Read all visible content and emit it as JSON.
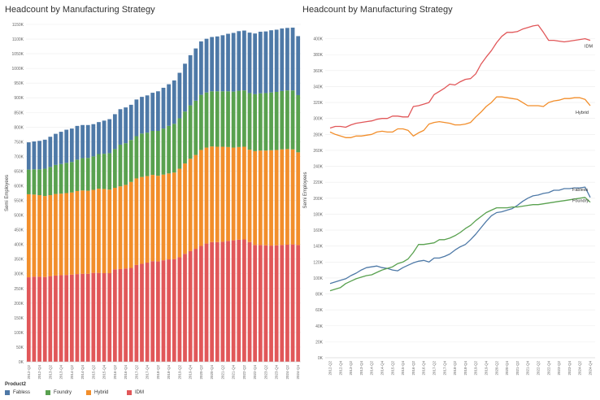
{
  "colors": {
    "Fabless": "#4e79a7",
    "Foundry": "#59a14f",
    "Hybrid": "#f28e2b",
    "IDM": "#e15759"
  },
  "legend": {
    "title": "Product2",
    "items": [
      {
        "label": "Fabless",
        "color": "#4e79a7"
      },
      {
        "label": "Foundry",
        "color": "#59a14f"
      },
      {
        "label": "Hybrid",
        "color": "#f28e2b"
      },
      {
        "label": "IDM",
        "color": "#e15759"
      }
    ]
  },
  "chart_data": [
    {
      "type": "bar",
      "stacked": true,
      "title": "Headcount by Manufacturing Strategy",
      "xlabel": "",
      "ylabel": "Semi Employees",
      "ylim": [
        0,
        1150000
      ],
      "y_ticks": [
        0,
        50000,
        100000,
        150000,
        200000,
        250000,
        300000,
        350000,
        400000,
        450000,
        500000,
        550000,
        600000,
        650000,
        700000,
        750000,
        800000,
        850000,
        900000,
        950000,
        1000000,
        1050000,
        1100000,
        1150000
      ],
      "y_tick_labels": [
        "0K",
        "50K",
        "100K",
        "150K",
        "200K",
        "250K",
        "300K",
        "350K",
        "400K",
        "450K",
        "500K",
        "550K",
        "600K",
        "650K",
        "700K",
        "750K",
        "800K",
        "850K",
        "900K",
        "950K",
        "1000K",
        "1050K",
        "1100K",
        "1150K"
      ],
      "grid": true,
      "categories": [
        "2012-Q2",
        "2012-Q3",
        "2012-Q4",
        "2013-Q1",
        "2013-Q2",
        "2013-Q3",
        "2013-Q4",
        "2014-Q1",
        "2014-Q2",
        "2014-Q3",
        "2014-Q4",
        "2015-Q1",
        "2015-Q2",
        "2015-Q3",
        "2015-Q4",
        "2016-Q1",
        "2016-Q2",
        "2016-Q3",
        "2016-Q4",
        "2017-Q1",
        "2017-Q2",
        "2017-Q3",
        "2017-Q4",
        "2018-Q1",
        "2018-Q2",
        "2018-Q3",
        "2018-Q4",
        "2019-Q1",
        "2019-Q2",
        "2019-Q3",
        "2019-Q4",
        "2020-Q1",
        "2020-Q2",
        "2020-Q3",
        "2020-Q4",
        "2021-Q1",
        "2021-Q2",
        "2021-Q3",
        "2021-Q4",
        "2022-Q1",
        "2022-Q2",
        "2022-Q3",
        "2022-Q4",
        "2023-Q1",
        "2023-Q2",
        "2023-Q3",
        "2023-Q4",
        "2024-Q1",
        "2024-Q2",
        "2024-Q3",
        "2024-Q4"
      ],
      "x_tick_labels": [
        "2012-Q2",
        "2012-Q4",
        "2013-Q2",
        "2013-Q4",
        "2014-Q2",
        "2014-Q4",
        "2015-Q2",
        "2015-Q4",
        "2016-Q2",
        "2016-Q4",
        "2017-Q2",
        "2017-Q4",
        "2018-Q2",
        "2018-Q4",
        "2019-Q2",
        "2019-Q4",
        "2020-Q2",
        "2020-Q4",
        "2021-Q2",
        "2021-Q4",
        "2022-Q2",
        "2022-Q4",
        "2023-Q2",
        "2023-Q4",
        "2024-Q2",
        "2024-Q4"
      ],
      "series": [
        {
          "name": "IDM",
          "values": [
            288000,
            290000,
            290000,
            289000,
            292000,
            294000,
            295000,
            296000,
            297000,
            299000,
            300000,
            300000,
            303000,
            303000,
            302000,
            302000,
            315000,
            316000,
            318000,
            320000,
            330000,
            334000,
            338000,
            343000,
            342000,
            346000,
            349000,
            350000,
            356000,
            368000,
            377000,
            385000,
            395000,
            403000,
            408000,
            408000,
            409000,
            412000,
            414000,
            416000,
            417000,
            408000,
            398000,
            398000,
            397000,
            396000,
            397000,
            398000,
            399000,
            400000,
            398000
          ]
        },
        {
          "name": "Hybrid",
          "values": [
            283000,
            280000,
            278000,
            276000,
            276000,
            278000,
            278000,
            279000,
            280000,
            283000,
            284000,
            283000,
            283000,
            287000,
            287000,
            285000,
            278000,
            282000,
            285000,
            293000,
            295000,
            296000,
            295000,
            294000,
            292000,
            292000,
            293000,
            295000,
            302000,
            308000,
            315000,
            320000,
            327000,
            327000,
            326000,
            325000,
            324000,
            320000,
            316000,
            316000,
            316000,
            315000,
            320000,
            322000,
            323000,
            325000,
            325000,
            326000,
            326000,
            324000,
            316000
          ]
        },
        {
          "name": "Foundry",
          "values": [
            84000,
            86000,
            88000,
            93000,
            96000,
            99000,
            101000,
            103000,
            104000,
            107000,
            110000,
            112000,
            114000,
            118000,
            120000,
            124000,
            132000,
            142000,
            142000,
            143000,
            144000,
            148000,
            148000,
            150000,
            153000,
            157000,
            162000,
            166000,
            172000,
            177000,
            182000,
            185000,
            188000,
            188000,
            188000,
            189000,
            189000,
            190000,
            191000,
            192000,
            192000,
            193000,
            194000,
            195000,
            196000,
            197000,
            198000,
            199000,
            200000,
            201000,
            195000
          ]
        },
        {
          "name": "Fabless",
          "values": [
            93000,
            95000,
            97000,
            99000,
            103000,
            106000,
            110000,
            113000,
            114000,
            115000,
            113000,
            112000,
            110000,
            109000,
            113000,
            116000,
            119000,
            121000,
            122000,
            120000,
            125000,
            125000,
            127000,
            130000,
            135000,
            139000,
            142000,
            148000,
            155000,
            163000,
            171000,
            178000,
            182000,
            183000,
            185000,
            187000,
            191000,
            196000,
            200000,
            203000,
            204000,
            206000,
            207000,
            210000,
            210000,
            212000,
            212000,
            213000,
            213000,
            214000,
            201000
          ]
        }
      ]
    },
    {
      "type": "line",
      "title": "Headcount by Manufacturing Strategy",
      "xlabel": "",
      "ylabel": "Semi Employees",
      "ylim": [
        0,
        420000
      ],
      "y_ticks": [
        0,
        20000,
        40000,
        60000,
        80000,
        100000,
        120000,
        140000,
        160000,
        180000,
        200000,
        220000,
        240000,
        260000,
        280000,
        300000,
        320000,
        340000,
        360000,
        380000,
        400000
      ],
      "y_tick_labels": [
        "0K",
        "20K",
        "40K",
        "60K",
        "80K",
        "100K",
        "120K",
        "140K",
        "160K",
        "180K",
        "200K",
        "220K",
        "240K",
        "260K",
        "280K",
        "300K",
        "320K",
        "340K",
        "360K",
        "380K",
        "400K"
      ],
      "grid": true,
      "categories": [
        "2012-Q2",
        "2012-Q3",
        "2012-Q4",
        "2013-Q1",
        "2013-Q2",
        "2013-Q3",
        "2013-Q4",
        "2014-Q1",
        "2014-Q2",
        "2014-Q3",
        "2014-Q4",
        "2015-Q1",
        "2015-Q2",
        "2015-Q3",
        "2015-Q4",
        "2016-Q1",
        "2016-Q2",
        "2016-Q3",
        "2016-Q4",
        "2017-Q1",
        "2017-Q2",
        "2017-Q3",
        "2017-Q4",
        "2018-Q1",
        "2018-Q2",
        "2018-Q3",
        "2018-Q4",
        "2019-Q1",
        "2019-Q2",
        "2019-Q3",
        "2019-Q4",
        "2020-Q1",
        "2020-Q2",
        "2020-Q3",
        "2020-Q4",
        "2021-Q1",
        "2021-Q2",
        "2021-Q3",
        "2021-Q4",
        "2022-Q1",
        "2022-Q2",
        "2022-Q3",
        "2022-Q4",
        "2023-Q1",
        "2023-Q2",
        "2023-Q3",
        "2023-Q4",
        "2024-Q1",
        "2024-Q2",
        "2024-Q3",
        "2024-Q4"
      ],
      "x_tick_labels": [
        "2012-Q2",
        "2012-Q4",
        "2013-Q2",
        "2013-Q4",
        "2014-Q2",
        "2014-Q4",
        "2015-Q2",
        "2015-Q4",
        "2016-Q2",
        "2016-Q4",
        "2017-Q2",
        "2017-Q4",
        "2018-Q2",
        "2018-Q4",
        "2019-Q2",
        "2019-Q4",
        "2020-Q2",
        "2020-Q4",
        "2021-Q2",
        "2021-Q4",
        "2022-Q2",
        "2022-Q4",
        "2023-Q2",
        "2023-Q4",
        "2024-Q2",
        "2024-Q4"
      ],
      "series": [
        {
          "name": "IDM",
          "values": [
            288000,
            290000,
            290000,
            289000,
            292000,
            294000,
            295000,
            296000,
            297000,
            299000,
            300000,
            300000,
            303000,
            303000,
            302000,
            302000,
            315000,
            316000,
            318000,
            320000,
            330000,
            334000,
            338000,
            343000,
            342000,
            346000,
            349000,
            350000,
            356000,
            368000,
            377000,
            385000,
            395000,
            403000,
            408000,
            408000,
            409000,
            412000,
            414000,
            416000,
            417000,
            408000,
            398000,
            398000,
            397000,
            396000,
            397000,
            398000,
            399000,
            400000,
            398000
          ]
        },
        {
          "name": "Hybrid",
          "values": [
            283000,
            280000,
            278000,
            276000,
            276000,
            278000,
            278000,
            279000,
            280000,
            283000,
            284000,
            283000,
            283000,
            287000,
            287000,
            285000,
            278000,
            282000,
            285000,
            293000,
            295000,
            296000,
            295000,
            294000,
            292000,
            292000,
            293000,
            295000,
            302000,
            308000,
            315000,
            320000,
            327000,
            327000,
            326000,
            325000,
            324000,
            320000,
            316000,
            316000,
            316000,
            315000,
            320000,
            322000,
            323000,
            325000,
            325000,
            326000,
            326000,
            324000,
            316000
          ]
        },
        {
          "name": "Fabless",
          "values": [
            93000,
            95000,
            97000,
            99000,
            103000,
            106000,
            110000,
            113000,
            114000,
            115000,
            113000,
            112000,
            110000,
            109000,
            113000,
            116000,
            119000,
            121000,
            122000,
            120000,
            125000,
            125000,
            127000,
            130000,
            135000,
            139000,
            142000,
            148000,
            155000,
            163000,
            171000,
            178000,
            182000,
            183000,
            185000,
            187000,
            191000,
            196000,
            200000,
            203000,
            204000,
            206000,
            207000,
            210000,
            210000,
            212000,
            212000,
            213000,
            213000,
            214000,
            201000
          ]
        },
        {
          "name": "Foundry",
          "values": [
            84000,
            86000,
            88000,
            93000,
            96000,
            99000,
            101000,
            103000,
            104000,
            107000,
            110000,
            112000,
            114000,
            118000,
            120000,
            124000,
            132000,
            142000,
            142000,
            143000,
            144000,
            148000,
            148000,
            150000,
            153000,
            157000,
            162000,
            166000,
            172000,
            177000,
            182000,
            185000,
            188000,
            188000,
            188000,
            189000,
            189000,
            190000,
            191000,
            192000,
            192000,
            193000,
            194000,
            195000,
            196000,
            197000,
            198000,
            199000,
            200000,
            201000,
            195000
          ]
        }
      ],
      "end_labels": [
        "IDM",
        "Hybrid",
        "Fabless",
        "Foundry"
      ]
    }
  ]
}
